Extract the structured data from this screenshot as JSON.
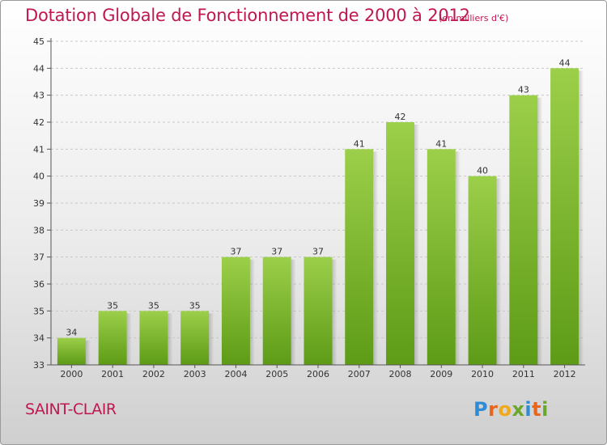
{
  "header": {
    "title": "Dotation Globale de Fonctionnement de 2000 à 2012",
    "unit": "(en milliers d'€)"
  },
  "commune": "SAINT-CLAIR",
  "logo_text": "Proxiti",
  "colors": {
    "title": "#c0174f",
    "bar_top": "#9ccf4a",
    "bar_bottom": "#5d9b16"
  },
  "chart_data": {
    "type": "bar",
    "title": "Dotation Globale de Fonctionnement de 2000 à 2012",
    "subtitle": "(en milliers d'€)",
    "xlabel": "",
    "ylabel": "",
    "categories": [
      "2000",
      "2001",
      "2002",
      "2003",
      "2004",
      "2005",
      "2006",
      "2007",
      "2008",
      "2009",
      "2010",
      "2011",
      "2012"
    ],
    "values": [
      34,
      35,
      35,
      35,
      37,
      37,
      37,
      41,
      42,
      41,
      40,
      43,
      44
    ],
    "ylim": [
      33,
      45
    ],
    "yticks": [
      33,
      34,
      35,
      36,
      37,
      38,
      39,
      40,
      41,
      42,
      43,
      44,
      45
    ],
    "grid": "horizontal dashed",
    "legend": "none",
    "data_labels": true
  }
}
